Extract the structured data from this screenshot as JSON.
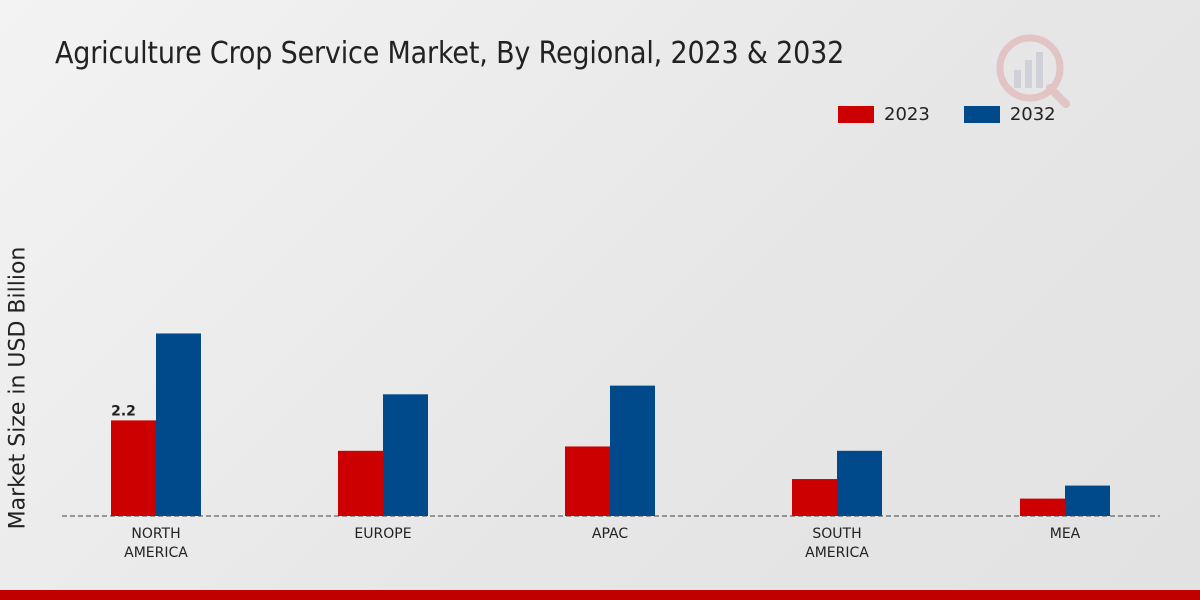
{
  "colors": {
    "series_2023": "#cc0000",
    "series_2032": "#004a8c",
    "axis": "#444444",
    "accent_bar": "#c00000"
  },
  "chart_data": {
    "type": "bar",
    "title": "Agriculture Crop Service Market, By Regional, 2023 & 2032",
    "xlabel": "",
    "ylabel": "Market Size in USD Billion",
    "categories": [
      "NORTH\nAMERICA",
      "EUROPE",
      "APAC",
      "SOUTH\nAMERICA",
      "MEA"
    ],
    "series": [
      {
        "name": "2023",
        "values": [
          2.2,
          1.5,
          1.6,
          0.85,
          0.4
        ]
      },
      {
        "name": "2032",
        "values": [
          4.2,
          2.8,
          3.0,
          1.5,
          0.7
        ]
      }
    ],
    "data_labels": [
      {
        "series": 0,
        "category": 0,
        "text": "2.2"
      }
    ],
    "ylim": [
      0,
      8
    ],
    "legend_position": "top-right",
    "grid": false
  },
  "watermark_icon": "market-research-logo-icon"
}
